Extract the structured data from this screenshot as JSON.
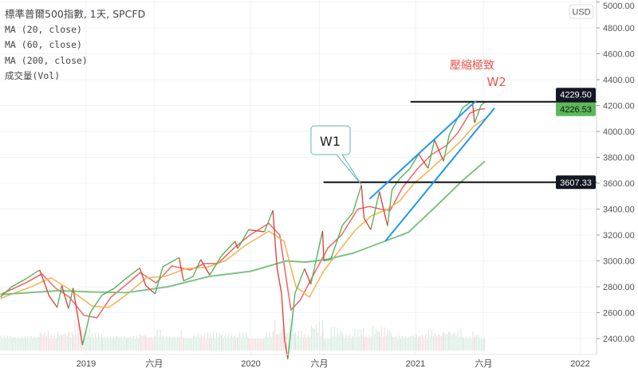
{
  "legend": {
    "title": "標準普爾500指數, 1天, SPCFD",
    "ma20": "MA (20, close)",
    "ma60": "MA (60, close)",
    "ma200": "MA (200, close)",
    "volume": "成交量(Vol)"
  },
  "currency": "USD",
  "colors": {
    "up": "#4caf50",
    "down": "#e53935",
    "ma20": "#ef6b6b",
    "ma60": "#f5b55a",
    "ma200": "#7dc383",
    "channel": "#2196f3",
    "level": "#111111",
    "annotation": "#e8534a",
    "last_price_bg": "#5cb85c"
  },
  "chart_data": {
    "type": "line",
    "title": "標準普爾500指數, 1天, SPCFD",
    "ylim": [
      2300,
      5000
    ],
    "y_ticks": [
      "2400.00",
      "2600.00",
      "2800.00",
      "3000.00",
      "3200.00",
      "3400.00",
      "3600.00",
      "3800.00",
      "4000.00",
      "4200.00",
      "4400.00",
      "4600.00",
      "4800.00",
      "5000.00"
    ],
    "x_ticks": [
      {
        "date": "2019-01-01",
        "label": "2019"
      },
      {
        "date": "2019-06-01",
        "label": "六月"
      },
      {
        "date": "2020-01-01",
        "label": "2020"
      },
      {
        "date": "2020-06-01",
        "label": "六月"
      },
      {
        "date": "2021-01-01",
        "label": "2021"
      },
      {
        "date": "2021-06-01",
        "label": "六月"
      },
      {
        "date": "2022-01-01",
        "label": "2022"
      }
    ],
    "xlim": [
      "2018-06-25",
      "2022-03-15"
    ],
    "series": [
      {
        "name": "price",
        "points": [
          [
            "2018-06-25",
            2720
          ],
          [
            "2018-07-20",
            2800
          ],
          [
            "2018-08-20",
            2860
          ],
          [
            "2018-09-20",
            2930
          ],
          [
            "2018-10-11",
            2730
          ],
          [
            "2018-10-29",
            2640
          ],
          [
            "2018-11-08",
            2810
          ],
          [
            "2018-11-23",
            2630
          ],
          [
            "2018-12-03",
            2790
          ],
          [
            "2018-12-24",
            2350
          ],
          [
            "2019-01-10",
            2600
          ],
          [
            "2019-02-05",
            2735
          ],
          [
            "2019-03-05",
            2790
          ],
          [
            "2019-04-01",
            2870
          ],
          [
            "2019-04-30",
            2945
          ],
          [
            "2019-05-13",
            2810
          ],
          [
            "2019-06-03",
            2745
          ],
          [
            "2019-06-20",
            2955
          ],
          [
            "2019-07-26",
            3025
          ],
          [
            "2019-08-05",
            2845
          ],
          [
            "2019-08-26",
            2880
          ],
          [
            "2019-09-12",
            3010
          ],
          [
            "2019-10-02",
            2890
          ],
          [
            "2019-10-28",
            3040
          ],
          [
            "2019-11-27",
            3150
          ],
          [
            "2019-12-03",
            3095
          ],
          [
            "2019-12-27",
            3240
          ],
          [
            "2020-01-31",
            3225
          ],
          [
            "2020-02-19",
            3390
          ],
          [
            "2020-02-28",
            2950
          ],
          [
            "2020-03-09",
            2750
          ],
          [
            "2020-03-16",
            2390
          ],
          [
            "2020-03-23",
            2240
          ],
          [
            "2020-04-08",
            2750
          ],
          [
            "2020-04-29",
            2940
          ],
          [
            "2020-05-13",
            2820
          ],
          [
            "2020-06-08",
            3230
          ],
          [
            "2020-06-11",
            3000
          ],
          [
            "2020-06-26",
            3010
          ],
          [
            "2020-07-22",
            3275
          ],
          [
            "2020-08-14",
            3370
          ],
          [
            "2020-09-02",
            3585
          ],
          [
            "2020-09-08",
            3330
          ],
          [
            "2020-09-23",
            3240
          ],
          [
            "2020-10-12",
            3535
          ],
          [
            "2020-10-30",
            3270
          ],
          [
            "2020-11-09",
            3550
          ],
          [
            "2020-11-27",
            3640
          ],
          [
            "2020-12-18",
            3710
          ],
          [
            "2021-01-08",
            3825
          ],
          [
            "2021-01-29",
            3715
          ],
          [
            "2021-02-12",
            3935
          ],
          [
            "2021-03-04",
            3770
          ],
          [
            "2021-03-17",
            3975
          ],
          [
            "2021-04-16",
            4185
          ],
          [
            "2021-05-07",
            4235
          ],
          [
            "2021-05-12",
            4065
          ],
          [
            "2021-05-26",
            4200
          ],
          [
            "2021-06-04",
            4229
          ]
        ]
      },
      {
        "name": "ma20",
        "points": [
          [
            "2018-06-25",
            2740
          ],
          [
            "2018-08-20",
            2830
          ],
          [
            "2018-09-25",
            2900
          ],
          [
            "2018-10-25",
            2790
          ],
          [
            "2018-11-25",
            2720
          ],
          [
            "2018-12-27",
            2580
          ],
          [
            "2019-01-25",
            2560
          ],
          [
            "2019-02-25",
            2720
          ],
          [
            "2019-04-01",
            2820
          ],
          [
            "2019-05-01",
            2910
          ],
          [
            "2019-06-05",
            2830
          ],
          [
            "2019-07-10",
            2960
          ],
          [
            "2019-08-20",
            2930
          ],
          [
            "2019-09-20",
            2980
          ],
          [
            "2019-10-20",
            2980
          ],
          [
            "2019-11-25",
            3100
          ],
          [
            "2019-12-30",
            3200
          ],
          [
            "2020-02-10",
            3290
          ],
          [
            "2020-03-05",
            3200
          ],
          [
            "2020-03-30",
            2620
          ],
          [
            "2020-04-20",
            2700
          ],
          [
            "2020-05-20",
            2900
          ],
          [
            "2020-06-20",
            3100
          ],
          [
            "2020-07-20",
            3200
          ],
          [
            "2020-08-25",
            3400
          ],
          [
            "2020-09-20",
            3420
          ],
          [
            "2020-10-15",
            3400
          ],
          [
            "2020-11-05",
            3390
          ],
          [
            "2020-12-01",
            3560
          ],
          [
            "2021-01-05",
            3710
          ],
          [
            "2021-02-05",
            3820
          ],
          [
            "2021-03-10",
            3890
          ],
          [
            "2021-04-05",
            3990
          ],
          [
            "2021-05-01",
            4140
          ],
          [
            "2021-05-20",
            4170
          ],
          [
            "2021-06-04",
            4175
          ]
        ]
      },
      {
        "name": "ma60",
        "points": [
          [
            "2018-06-25",
            2710
          ],
          [
            "2018-09-01",
            2800
          ],
          [
            "2018-10-15",
            2870
          ],
          [
            "2018-11-25",
            2780
          ],
          [
            "2019-01-15",
            2650
          ],
          [
            "2019-02-20",
            2640
          ],
          [
            "2019-04-01",
            2740
          ],
          [
            "2019-05-15",
            2870
          ],
          [
            "2019-06-25",
            2880
          ],
          [
            "2019-08-10",
            2940
          ],
          [
            "2019-09-25",
            2950
          ],
          [
            "2019-11-05",
            3000
          ],
          [
            "2019-12-20",
            3120
          ],
          [
            "2020-02-10",
            3230
          ],
          [
            "2020-03-15",
            3150
          ],
          [
            "2020-04-10",
            2800
          ],
          [
            "2020-05-10",
            2720
          ],
          [
            "2020-06-10",
            2920
          ],
          [
            "2020-07-15",
            3080
          ],
          [
            "2020-08-20",
            3240
          ],
          [
            "2020-09-25",
            3350
          ],
          [
            "2020-10-25",
            3390
          ],
          [
            "2020-11-25",
            3460
          ],
          [
            "2020-12-28",
            3600
          ],
          [
            "2021-02-01",
            3700
          ],
          [
            "2021-03-10",
            3820
          ],
          [
            "2021-04-10",
            3920
          ],
          [
            "2021-05-10",
            4040
          ],
          [
            "2021-06-04",
            4100
          ]
        ]
      },
      {
        "name": "ma200",
        "points": [
          [
            "2018-06-25",
            2740
          ],
          [
            "2018-11-01",
            2770
          ],
          [
            "2019-01-15",
            2760
          ],
          [
            "2019-04-01",
            2755
          ],
          [
            "2019-07-01",
            2800
          ],
          [
            "2019-10-01",
            2880
          ],
          [
            "2020-01-01",
            2920
          ],
          [
            "2020-03-20",
            3000
          ],
          [
            "2020-05-01",
            2990
          ],
          [
            "2020-06-15",
            3010
          ],
          [
            "2020-08-15",
            3060
          ],
          [
            "2020-10-15",
            3140
          ],
          [
            "2020-12-15",
            3220
          ],
          [
            "2021-02-15",
            3420
          ],
          [
            "2021-04-15",
            3620
          ],
          [
            "2021-06-04",
            3770
          ]
        ]
      }
    ],
    "price_labels": [
      {
        "value": 4229.5,
        "label": "4229.50",
        "style": "dark"
      },
      {
        "value": 4226.53,
        "label": "4226.53",
        "style": "last"
      },
      {
        "value": 3607.33,
        "label": "3607.33",
        "style": "dark"
      }
    ],
    "drawings": {
      "horizontal_lines": [
        {
          "value": 4229.5,
          "from": "2020-12-20"
        },
        {
          "value": 3607.33,
          "from": "2020-06-10"
        }
      ],
      "channel_upper": [
        [
          "2020-09-20",
          3478
        ],
        [
          "2021-05-15",
          4235
        ]
      ],
      "channel_lower": [
        [
          "2020-10-25",
          3152
        ],
        [
          "2021-06-25",
          4180
        ]
      ],
      "callout": {
        "text": "W1",
        "target": [
          "2020-09-02",
          3590
        ]
      },
      "labels": [
        {
          "text": "壓縮極致",
          "date": "2021-03-25",
          "value": 4470
        },
        {
          "text": "W2",
          "date": "2021-05-25",
          "value": 4375
        }
      ]
    }
  }
}
